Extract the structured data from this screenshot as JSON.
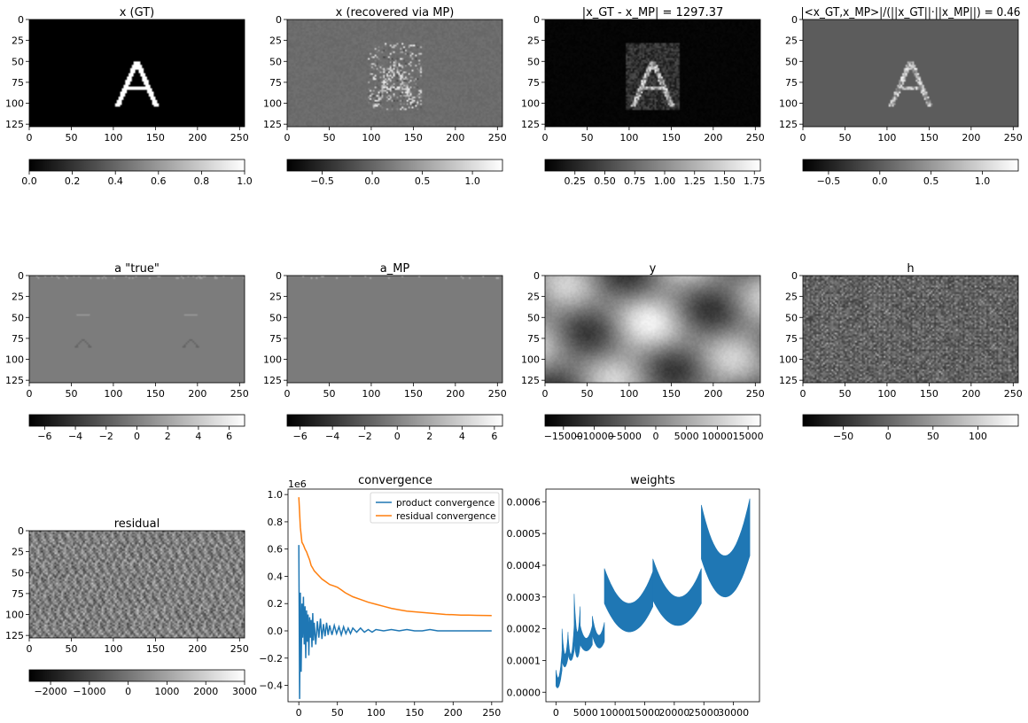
{
  "chart_data": [
    {
      "type": "heatmap",
      "title": "x (GT)",
      "content": "letter-A",
      "colormap": "gray",
      "x_ticks": [
        "0",
        "50",
        "100",
        "150",
        "200",
        "250"
      ],
      "y_ticks": [
        "0",
        "25",
        "50",
        "75",
        "100",
        "125"
      ],
      "xlim": [
        0,
        256
      ],
      "ylim": [
        128,
        0
      ],
      "colorbar": {
        "min": 0,
        "max": 1,
        "ticks": [
          "0.0",
          "0.2",
          "0.4",
          "0.6",
          "0.8",
          "1.0"
        ]
      }
    },
    {
      "type": "heatmap",
      "title": "x (recovered via MP)",
      "content": "recovered",
      "colormap": "gray",
      "x_ticks": [
        "0",
        "50",
        "100",
        "150",
        "200",
        "250"
      ],
      "y_ticks": [
        "0",
        "25",
        "50",
        "75",
        "100",
        "125"
      ],
      "xlim": [
        0,
        256
      ],
      "ylim": [
        128,
        0
      ],
      "colorbar": {
        "min": -0.85,
        "max": 1.3,
        "ticks": [
          "−0.5",
          "0.0",
          "0.5",
          "1.0"
        ]
      }
    },
    {
      "type": "heatmap",
      "title": "|x_GT - x_MP| = 1297.37",
      "content": "error",
      "colormap": "gray",
      "x_ticks": [
        "0",
        "50",
        "100",
        "150",
        "200",
        "250"
      ],
      "y_ticks": [
        "0",
        "25",
        "50",
        "75",
        "100",
        "125"
      ],
      "xlim": [
        0,
        256
      ],
      "ylim": [
        128,
        0
      ],
      "colorbar": {
        "min": 0.0,
        "max": 1.8,
        "ticks": [
          "0.25",
          "0.50",
          "0.75",
          "1.00",
          "1.25",
          "1.50",
          "1.75"
        ]
      }
    },
    {
      "type": "heatmap",
      "title": "|<x_GT,x_MP>|/(||x_GT||·||x_MP||) = 0.46",
      "content": "product",
      "colormap": "gray",
      "x_ticks": [
        "0",
        "50",
        "100",
        "150",
        "200",
        "250"
      ],
      "y_ticks": [
        "0",
        "25",
        "50",
        "75",
        "100",
        "125"
      ],
      "xlim": [
        0,
        256
      ],
      "ylim": [
        128,
        0
      ],
      "colorbar": {
        "min": -0.75,
        "max": 1.35,
        "ticks": [
          "−0.5",
          "0.0",
          "0.5",
          "1.0"
        ]
      }
    },
    {
      "type": "heatmap",
      "title": "a \"true\"",
      "content": "a-true",
      "colormap": "gray",
      "x_ticks": [
        "0",
        "50",
        "100",
        "150",
        "200",
        "250"
      ],
      "y_ticks": [
        "0",
        "25",
        "50",
        "75",
        "100",
        "125"
      ],
      "xlim": [
        0,
        256
      ],
      "ylim": [
        128,
        0
      ],
      "colorbar": {
        "min": -7,
        "max": 7,
        "ticks": [
          "−6",
          "−4",
          "−2",
          "0",
          "2",
          "4",
          "6"
        ]
      }
    },
    {
      "type": "heatmap",
      "title": "a_MP",
      "content": "a-mp",
      "colormap": "gray",
      "x_ticks": [
        "0",
        "50",
        "100",
        "150",
        "200",
        "250"
      ],
      "y_ticks": [
        "0",
        "25",
        "50",
        "75",
        "100",
        "125"
      ],
      "xlim": [
        0,
        256
      ],
      "ylim": [
        128,
        0
      ],
      "colorbar": {
        "min": -6.8,
        "max": 6.5,
        "ticks": [
          "−6",
          "−4",
          "−2",
          "0",
          "2",
          "4",
          "6"
        ]
      }
    },
    {
      "type": "heatmap",
      "title": "y",
      "content": "y",
      "colormap": "gray",
      "x_ticks": [
        "0",
        "50",
        "100",
        "150",
        "200",
        "250"
      ],
      "y_ticks": [
        "0",
        "25",
        "50",
        "75",
        "100",
        "125"
      ],
      "xlim": [
        0,
        256
      ],
      "ylim": [
        128,
        0
      ],
      "colorbar": {
        "min": -18000,
        "max": 17000,
        "ticks": [
          "−15000",
          "−10000",
          "−5000",
          "0",
          "5000",
          "10000",
          "15000"
        ]
      }
    },
    {
      "type": "heatmap",
      "title": "h",
      "content": "h",
      "colormap": "gray",
      "x_ticks": [
        "0",
        "50",
        "100",
        "150",
        "200",
        "250"
      ],
      "y_ticks": [
        "0",
        "25",
        "50",
        "75",
        "100",
        "125"
      ],
      "xlim": [
        0,
        256
      ],
      "ylim": [
        128,
        0
      ],
      "colorbar": {
        "min": -95,
        "max": 145,
        "ticks": [
          "−50",
          "0",
          "50",
          "100"
        ]
      }
    },
    {
      "type": "heatmap",
      "title": "residual",
      "content": "residual",
      "colormap": "gray",
      "x_ticks": [
        "0",
        "50",
        "100",
        "150",
        "200",
        "250"
      ],
      "y_ticks": [
        "0",
        "25",
        "50",
        "75",
        "100",
        "125"
      ],
      "xlim": [
        0,
        256
      ],
      "ylim": [
        128,
        0
      ],
      "colorbar": {
        "min": -2550,
        "max": 3000,
        "ticks": [
          "−2000",
          "−1000",
          "0",
          "1000",
          "2000",
          "3000"
        ]
      }
    },
    {
      "type": "line",
      "title": "convergence",
      "scale_label": "1e6",
      "xlim": [
        -14,
        264
      ],
      "ylim": [
        -0.52,
        1.04
      ],
      "x_ticks": [
        0,
        50,
        100,
        150,
        200,
        250
      ],
      "y_ticks": [
        -0.4,
        -0.2,
        0.0,
        0.2,
        0.4,
        0.6,
        0.8,
        1.0
      ],
      "legend_position": "top-right",
      "series": [
        {
          "name": "product convergence",
          "color": "#1f77b4",
          "x": [
            0,
            1,
            2,
            3,
            4,
            5,
            6,
            7,
            8,
            9,
            10,
            11,
            12,
            13,
            14,
            15,
            16,
            17,
            18,
            19,
            20,
            22,
            24,
            26,
            28,
            30,
            32,
            34,
            36,
            38,
            40,
            43,
            46,
            49,
            52,
            55,
            58,
            61,
            64,
            67,
            70,
            75,
            80,
            85,
            90,
            95,
            100,
            110,
            120,
            130,
            140,
            150,
            160,
            170,
            180,
            190,
            200,
            210,
            220,
            230,
            240,
            250
          ],
          "y": [
            0.63,
            -0.5,
            0.28,
            -0.3,
            0.2,
            -0.05,
            0.25,
            -0.1,
            0.18,
            -0.2,
            0.15,
            -0.08,
            0.12,
            -0.18,
            0.1,
            -0.05,
            0.08,
            -0.12,
            0.13,
            -0.07,
            0.06,
            -0.1,
            0.07,
            -0.05,
            0.09,
            -0.06,
            0.05,
            -0.04,
            0.06,
            -0.03,
            0.04,
            -0.03,
            0.04,
            -0.02,
            0.03,
            -0.03,
            0.03,
            -0.02,
            0.02,
            -0.02,
            0.02,
            -0.01,
            0.02,
            -0.01,
            0.01,
            -0.01,
            0.01,
            0.0,
            0.01,
            0.0,
            0.01,
            0.0,
            0.0,
            0.01,
            0.0,
            0.0,
            0.0,
            0.0,
            0.0,
            0.0,
            0.0,
            0.0
          ]
        },
        {
          "name": "residual convergence",
          "color": "#ff7f0e",
          "x": [
            0,
            2,
            4,
            6,
            8,
            10,
            12,
            14,
            16,
            18,
            20,
            25,
            30,
            35,
            40,
            45,
            50,
            55,
            60,
            70,
            80,
            90,
            100,
            110,
            120,
            130,
            140,
            150,
            160,
            170,
            180,
            190,
            200,
            210,
            220,
            230,
            240,
            250
          ],
          "y": [
            0.98,
            0.76,
            0.65,
            0.63,
            0.6,
            0.58,
            0.55,
            0.52,
            0.48,
            0.46,
            0.44,
            0.41,
            0.38,
            0.36,
            0.34,
            0.33,
            0.32,
            0.3,
            0.28,
            0.25,
            0.23,
            0.21,
            0.195,
            0.18,
            0.165,
            0.155,
            0.145,
            0.14,
            0.135,
            0.13,
            0.125,
            0.12,
            0.118,
            0.116,
            0.115,
            0.114,
            0.113,
            0.112
          ]
        }
      ]
    },
    {
      "type": "area",
      "title": "weights",
      "xlim": [
        -1700,
        34400
      ],
      "ylim": [
        -3e-05,
        0.00064
      ],
      "x_ticks": [
        0,
        5000,
        10000,
        15000,
        20000,
        25000,
        30000
      ],
      "y_ticks": [
        "0.0000",
        "0.0001",
        "0.0002",
        "0.0003",
        "0.0004",
        "0.0005",
        "0.0006"
      ],
      "y_tick_values": [
        0,
        0.0001,
        0.0002,
        0.0003,
        0.0004,
        0.0005,
        0.0006
      ],
      "color": "#1f77b4",
      "bands": [
        {
          "x0": 0,
          "x1": 1024,
          "top0": 7e-05,
          "topMin": 5e-05,
          "top1": 0.00013,
          "low0": 2e-05,
          "lowMin": 2e-05,
          "low1": 7e-05
        },
        {
          "x0": 1024,
          "x1": 2048,
          "top0": 0.0002,
          "topMin": 0.00012,
          "top1": 0.00019,
          "low0": 0.0001,
          "lowMin": 8e-05,
          "low1": 0.00011
        },
        {
          "x0": 2048,
          "x1": 3072,
          "top0": 0.00018,
          "topMin": 0.00012,
          "top1": 0.00021,
          "low0": 0.00012,
          "lowMin": 0.0001,
          "low1": 0.00013
        },
        {
          "x0": 3072,
          "x1": 4096,
          "top0": 0.00031,
          "topMin": 0.00019,
          "top1": 0.00027,
          "low0": 0.00016,
          "lowMin": 0.00011,
          "low1": 0.00015
        },
        {
          "x0": 4096,
          "x1": 6144,
          "top0": 0.00021,
          "topMin": 0.00017,
          "top1": 0.00021,
          "low0": 0.00015,
          "lowMin": 0.00013,
          "low1": 0.00015
        },
        {
          "x0": 6144,
          "x1": 8192,
          "top0": 0.00024,
          "topMin": 0.00018,
          "top1": 0.00022,
          "low0": 0.00018,
          "lowMin": 0.00014,
          "low1": 0.00016
        },
        {
          "x0": 8192,
          "x1": 16384,
          "top0": 0.00039,
          "topMin": 0.00028,
          "top1": 0.00038,
          "low0": 0.00028,
          "lowMin": 0.00019,
          "low1": 0.00027
        },
        {
          "x0": 16384,
          "x1": 24576,
          "top0": 0.00042,
          "topMin": 0.0003,
          "top1": 0.00039,
          "low0": 0.00029,
          "lowMin": 0.00021,
          "low1": 0.00028
        },
        {
          "x0": 24576,
          "x1": 32768,
          "top0": 0.00059,
          "topMin": 0.00043,
          "top1": 0.00061,
          "low0": 0.00042,
          "lowMin": 0.0003,
          "low1": 0.00043
        }
      ]
    }
  ]
}
